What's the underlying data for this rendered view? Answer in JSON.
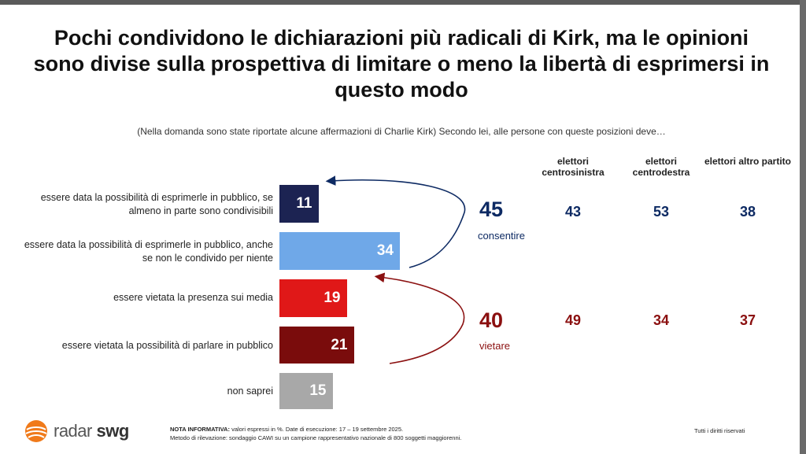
{
  "title": "Pochi condividono le dichiarazioni più radicali di Kirk, ma le opinioni sono divise sulla prospettiva di limitare o meno la libertà di esprimersi in questo modo",
  "subtitle": "(Nella domanda sono state riportate alcune affermazioni di Charlie Kirk) Secondo lei, alle persone con queste posizioni deve…",
  "chart_data": {
    "type": "bar",
    "orientation": "horizontal",
    "categories": [
      "essere data la possibilità di esprimerle in pubblico, se almeno in parte sono condivisibili",
      "essere data la possibilità di esprimerle in pubblico, anche se non le condivido per niente",
      "essere vietata la presenza sui media",
      "essere vietata la possibilità di parlare in pubblico",
      "non saprei"
    ],
    "values": [
      11,
      34,
      19,
      21,
      15
    ],
    "colors": [
      "#1c2352",
      "#6fa8e8",
      "#e01818",
      "#7a0c0c",
      "#a8a8a8"
    ],
    "groups": [
      {
        "total": "45",
        "label": "consentire",
        "color": "#0d2a63"
      },
      {
        "total": "40",
        "label": "vietare",
        "color": "#8b1010"
      }
    ],
    "breakdown": {
      "columns": [
        "elettori centrosinistra",
        "elettori centrodestra",
        "elettori altro partito"
      ],
      "rows": [
        {
          "values": [
            "43",
            "53",
            "38"
          ]
        },
        {
          "values": [
            "49",
            "34",
            "37"
          ]
        }
      ]
    }
  },
  "footer": {
    "logo_part1": "radar",
    "logo_part2": "swg",
    "note_label": "NOTA INFORMATIVA:",
    "note_text": "valori espressi in %. Date di esecuzione: 17 – 19 settembre 2025.",
    "method": "Metodo di rilevazione: sondaggio CAWI su un campione rappresentativo nazionale di 800 soggetti maggiorenni.",
    "rights": "Tutti i diritti riservati"
  }
}
